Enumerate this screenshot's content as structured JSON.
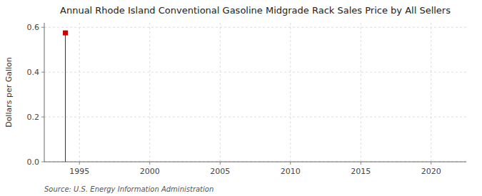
{
  "chart_data": {
    "type": "stem",
    "title": "Annual Rhode Island Conventional Gasoline Midgrade Rack Sales Price by All Sellers",
    "y_label": "Dollars per Gallon",
    "annotations": [
      "Source: U.S. Energy Information Administration"
    ],
    "x": [
      1994
    ],
    "values": [
      0.575
    ],
    "color": "#cc0000",
    "marker": "square",
    "xlim": [
      1992.5,
      2022.5
    ],
    "ylim": [
      0.0,
      0.62
    ],
    "xticks": [
      1995,
      2000,
      2005,
      2010,
      2015,
      2020
    ],
    "yticks": [
      {
        "value": 0.0,
        "label": "0.0"
      },
      0.2,
      0.4,
      0.6
    ],
    "grid": true
  }
}
